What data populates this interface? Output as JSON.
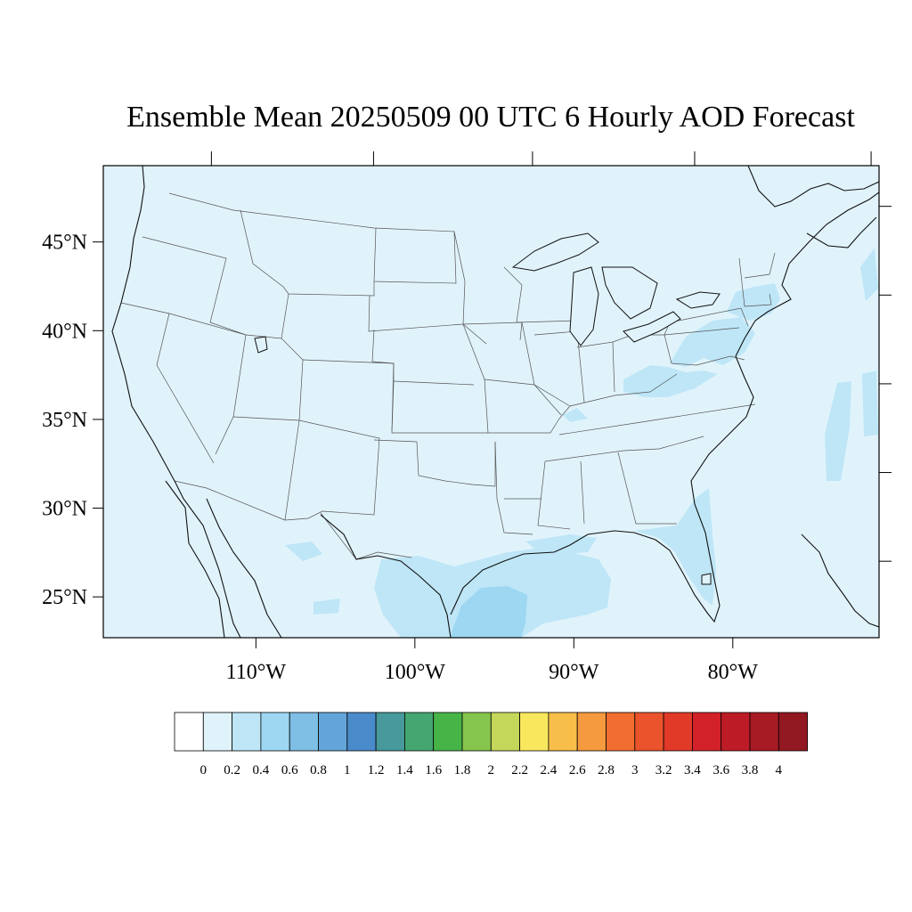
{
  "title": "Ensemble Mean 20250509 00 UTC 6 Hourly AOD Forecast",
  "map": {
    "extent": {
      "lon_min": -119.6,
      "lon_max": -70.8,
      "lat_min": 22.7,
      "lat_max": 49.3
    },
    "background_color": "#e0f3fb",
    "lat_ticks": [
      {
        "value": 45,
        "label": "45°N"
      },
      {
        "value": 40,
        "label": "40°N"
      },
      {
        "value": 35,
        "label": "35°N"
      },
      {
        "value": 30,
        "label": "30°N"
      },
      {
        "value": 25,
        "label": "25°N"
      }
    ],
    "lon_ticks": [
      {
        "value": -110,
        "label": "110°W"
      },
      {
        "value": -100,
        "label": "100°W"
      },
      {
        "value": -90,
        "label": "90°W"
      },
      {
        "value": -80,
        "label": "80°W"
      }
    ],
    "aod_regions": [
      {
        "name": "texas-gulf-coast",
        "level": 0.4,
        "color": "#bee6f7"
      },
      {
        "name": "south-texas-core",
        "level": 0.6,
        "color": "#9dd7f2"
      },
      {
        "name": "gulf-coast-east",
        "level": 0.4,
        "color": "#bee6f7"
      },
      {
        "name": "florida",
        "level": 0.4,
        "color": "#bee6f7"
      },
      {
        "name": "mid-atlantic",
        "level": 0.4,
        "color": "#bee6f7"
      },
      {
        "name": "ohio-valley",
        "level": 0.4,
        "color": "#bee6f7"
      },
      {
        "name": "new-england",
        "level": 0.4,
        "color": "#bee6f7"
      },
      {
        "name": "atlantic-offshore",
        "level": 0.4,
        "color": "#bee6f7"
      }
    ]
  },
  "colorbar": {
    "boxes": [
      "#ffffff",
      "#e0f3fb",
      "#bee6f7",
      "#9dd7f2",
      "#7fbfe6",
      "#63a5d9",
      "#4a8bcb",
      "#47999b",
      "#45a671",
      "#47b448",
      "#86c54e",
      "#c4d75a",
      "#f9e85e",
      "#f8be4a",
      "#f59a3e",
      "#f26e30",
      "#ea532b",
      "#e13a29",
      "#d22128",
      "#bd1c26",
      "#a61b24",
      "#921821"
    ],
    "labels": [
      "0",
      "0.2",
      "0.4",
      "0.6",
      "0.8",
      "1",
      "1.2",
      "1.4",
      "1.6",
      "1.8",
      "2",
      "2.2",
      "2.4",
      "2.6",
      "2.8",
      "3",
      "3.2",
      "3.4",
      "3.6",
      "3.8",
      "4"
    ]
  }
}
